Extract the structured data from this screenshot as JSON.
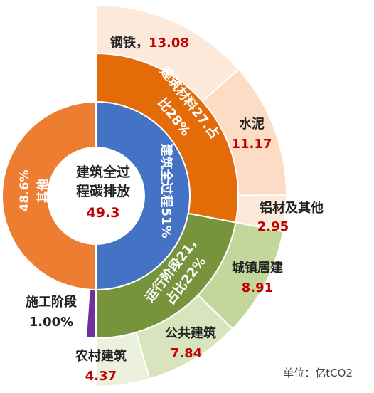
{
  "chart_data": {
    "type": "sunburst",
    "unit_label": "单位：亿tCO2",
    "center": {
      "line1": "建筑全过",
      "line2": "程碳排放",
      "value": "49.3"
    },
    "inner_ring": [
      {
        "name_line1": "建筑全过程51%",
        "percent": 51,
        "color": "#4472C4"
      },
      {
        "name_line1": "其他",
        "name_line2": "48.6%",
        "percent": 48.6,
        "color": "#ED7D31"
      },
      {
        "name_line1": "",
        "percent": 0.4,
        "color": "#ED7D31"
      }
    ],
    "middle_ring": [
      {
        "label_line1": "建筑材料27.占",
        "label_line2": "比28%",
        "percent": 28,
        "color": "#E36C09"
      },
      {
        "label_line1": "运行阶段21，",
        "label_line2": "占比22%",
        "percent": 22,
        "color": "#77933C"
      },
      {
        "label_line1": "",
        "percent": 1,
        "color": "#7030A0"
      }
    ],
    "outer_ring": [
      {
        "name": "钢铁，",
        "value": 13.08,
        "value_text": "13.08",
        "color": "#FDE9DA"
      },
      {
        "name": "水泥",
        "value": 11.17,
        "value_text": "11.17",
        "color": "#FCDCC4"
      },
      {
        "name": "铝材及其他",
        "value": 2.95,
        "value_text": "2.95",
        "color": "#FDE9DA"
      },
      {
        "name": "城镇居建",
        "value": 8.91,
        "value_text": "8.91",
        "color": "#C3D69B"
      },
      {
        "name": "公共建筑",
        "value": 7.84,
        "value_text": "7.84",
        "color": "#D7E4BD"
      },
      {
        "name": "农村建筑",
        "value": 4.37,
        "value_text": "4.37",
        "color": "#EBF1DE"
      }
    ],
    "construction": {
      "name": "施工阶段",
      "value_text": "1.00%"
    }
  }
}
